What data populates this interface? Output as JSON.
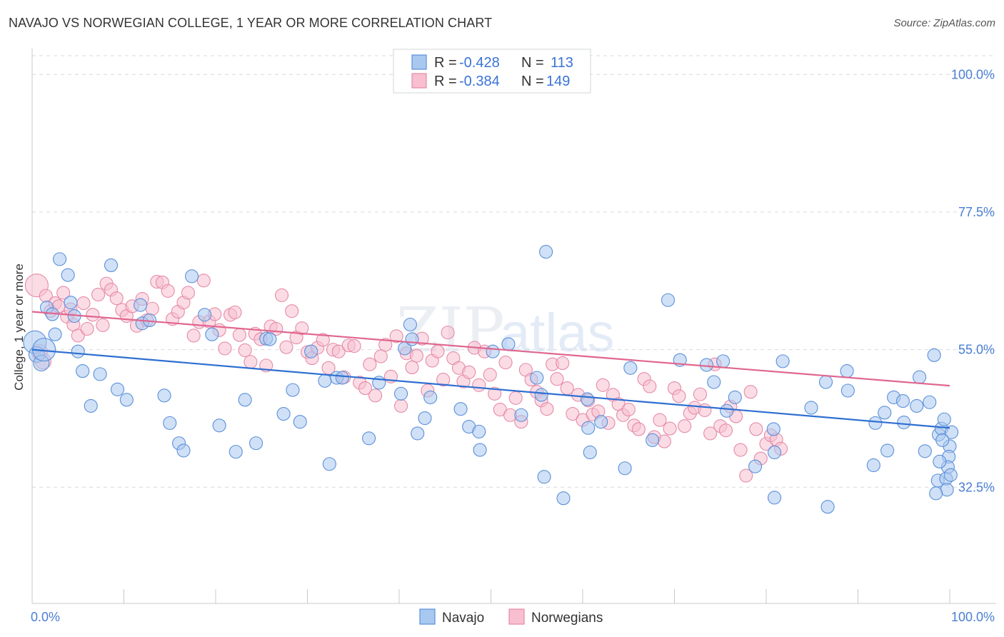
{
  "title": "NAVAJO VS NORWEGIAN COLLEGE, 1 YEAR OR MORE CORRELATION CHART",
  "source": "Source: ZipAtlas.com",
  "watermark": {
    "zip": "ZIP",
    "atlas": "atlas"
  },
  "legend_top": {
    "rows": [
      {
        "r_label": "R = ",
        "r_value": "-0.428",
        "n_label": "N = ",
        "n_value": "113"
      },
      {
        "r_label": "R = ",
        "r_value": "-0.384",
        "n_label": "N = ",
        "n_value": "149"
      }
    ]
  },
  "legend_bottom": {
    "items": [
      "Navajo",
      "Norwegians"
    ]
  },
  "colors": {
    "navajo_fill": "#a9c8f0",
    "navajo_stroke": "#5b8fd8",
    "navajo_line": "#2f6fd1",
    "norwegian_fill": "#f7bfd0",
    "norwegian_stroke": "#e58aa8",
    "norwegian_line": "#e0668f",
    "tick_label": "#4a7fd4",
    "grid": "#d5d9df"
  },
  "chart_data": {
    "type": "scatter",
    "title": "NAVAJO VS NORWEGIAN COLLEGE, 1 YEAR OR MORE CORRELATION CHART",
    "xlabel": "",
    "ylabel": "College, 1 year or more",
    "xlim": [
      0,
      100
    ],
    "ylim": [
      13.5,
      104
    ],
    "x_tick_labels": [
      {
        "value": 0,
        "label": "0.0%"
      },
      {
        "value": 100,
        "label": "100.0%"
      }
    ],
    "y_tick_labels": [
      {
        "value": 100,
        "label": "100.0%"
      },
      {
        "value": 77.5,
        "label": "77.5%"
      },
      {
        "value": 55,
        "label": "55.0%"
      },
      {
        "value": 32.5,
        "label": "32.5%"
      }
    ],
    "grid": true,
    "legend_position": "top-center",
    "series": [
      {
        "name": "Navajo",
        "r": -0.428,
        "n": 113,
        "trend": {
          "x": [
            0,
            100
          ],
          "y": [
            55.0,
            42.2
          ]
        },
        "points": [
          [
            0.3,
            56.2
          ],
          [
            0.5,
            54.2
          ],
          [
            1.0,
            52.8
          ],
          [
            1.3,
            55.0
          ],
          [
            1.6,
            61.9
          ],
          [
            2.2,
            60.8
          ],
          [
            2.5,
            57.5
          ],
          [
            3.0,
            69.8
          ],
          [
            3.9,
            67.2
          ],
          [
            4.2,
            62.7
          ],
          [
            4.6,
            60.5
          ],
          [
            5.0,
            54.7
          ],
          [
            5.5,
            51.5
          ],
          [
            6.4,
            45.8
          ],
          [
            7.4,
            51.0
          ],
          [
            8.6,
            68.8
          ],
          [
            9.3,
            48.5
          ],
          [
            10.3,
            46.8
          ],
          [
            11.8,
            62.3
          ],
          [
            12.0,
            59.3
          ],
          [
            12.8,
            59.8
          ],
          [
            14.4,
            47.5
          ],
          [
            15.0,
            43.0
          ],
          [
            16.0,
            39.7
          ],
          [
            16.5,
            38.5
          ],
          [
            17.4,
            67.0
          ],
          [
            18.8,
            60.7
          ],
          [
            19.6,
            57.5
          ],
          [
            20.4,
            42.6
          ],
          [
            22.2,
            38.3
          ],
          [
            23.2,
            46.8
          ],
          [
            24.4,
            39.7
          ],
          [
            25.5,
            56.8
          ],
          [
            25.9,
            56.7
          ],
          [
            27.4,
            44.5
          ],
          [
            28.4,
            48.4
          ],
          [
            29.2,
            43.2
          ],
          [
            30.4,
            54.7
          ],
          [
            31.9,
            49.9
          ],
          [
            32.4,
            36.3
          ],
          [
            33.2,
            50.4
          ],
          [
            33.8,
            50.4
          ],
          [
            36.7,
            40.5
          ],
          [
            37.8,
            49.6
          ],
          [
            40.2,
            47.8
          ],
          [
            40.6,
            55.2
          ],
          [
            41.2,
            59.1
          ],
          [
            41.4,
            56.7
          ],
          [
            42.0,
            41.3
          ],
          [
            42.8,
            43.8
          ],
          [
            43.4,
            47.2
          ],
          [
            46.7,
            45.3
          ],
          [
            47.6,
            42.4
          ],
          [
            48.7,
            41.6
          ],
          [
            48.8,
            38.6
          ],
          [
            50.2,
            54.7
          ],
          [
            51.9,
            55.9
          ],
          [
            53.3,
            44.3
          ],
          [
            55.0,
            50.4
          ],
          [
            55.5,
            47.6
          ],
          [
            55.8,
            34.2
          ],
          [
            56.0,
            71.0
          ],
          [
            57.9,
            30.7
          ],
          [
            60.5,
            46.9
          ],
          [
            60.6,
            42.2
          ],
          [
            60.8,
            38.2
          ],
          [
            62.0,
            43.2
          ],
          [
            64.6,
            35.6
          ],
          [
            65.2,
            52.0
          ],
          [
            67.6,
            40.2
          ],
          [
            69.3,
            63.1
          ],
          [
            70.6,
            53.3
          ],
          [
            73.5,
            52.5
          ],
          [
            74.3,
            49.7
          ],
          [
            75.3,
            53.1
          ],
          [
            75.7,
            45.0
          ],
          [
            76.6,
            47.2
          ],
          [
            78.8,
            35.9
          ],
          [
            80.8,
            42.0
          ],
          [
            80.9,
            38.2
          ],
          [
            80.9,
            30.8
          ],
          [
            81.8,
            53.1
          ],
          [
            84.9,
            45.5
          ],
          [
            86.5,
            49.7
          ],
          [
            86.7,
            29.3
          ],
          [
            88.8,
            51.5
          ],
          [
            88.9,
            48.3
          ],
          [
            91.7,
            36.1
          ],
          [
            91.9,
            43.0
          ],
          [
            92.9,
            44.7
          ],
          [
            93.2,
            38.5
          ],
          [
            93.9,
            47.2
          ],
          [
            94.9,
            46.6
          ],
          [
            95.0,
            43.1
          ],
          [
            96.4,
            45.8
          ],
          [
            96.7,
            50.5
          ],
          [
            97.3,
            38.4
          ],
          [
            97.8,
            46.4
          ],
          [
            98.3,
            54.1
          ],
          [
            98.7,
            33.6
          ],
          [
            98.8,
            41.1
          ],
          [
            99.1,
            42.1
          ],
          [
            99.6,
            33.9
          ],
          [
            100.0,
            39.2
          ],
          [
            99.9,
            37.5
          ],
          [
            99.8,
            35.8
          ],
          [
            100.1,
            34.5
          ],
          [
            99.7,
            32.1
          ],
          [
            100.2,
            41.5
          ],
          [
            99.4,
            43.6
          ],
          [
            98.9,
            36.7
          ],
          [
            98.5,
            31.5
          ],
          [
            99.2,
            40.2
          ]
        ]
      },
      {
        "name": "Norwegians",
        "r": -0.384,
        "n": 149,
        "trend": {
          "x": [
            0,
            100
          ],
          "y": [
            61.2,
            49.1
          ]
        },
        "points": [
          [
            0.5,
            65.5
          ],
          [
            0.8,
            54.6
          ],
          [
            1.2,
            53.1
          ],
          [
            1.5,
            63.8
          ],
          [
            2.0,
            61.3
          ],
          [
            2.5,
            62.6
          ],
          [
            2.9,
            62.1
          ],
          [
            3.4,
            64.3
          ],
          [
            3.8,
            60.4
          ],
          [
            4.2,
            61.6
          ],
          [
            4.5,
            59.1
          ],
          [
            5.0,
            57.3
          ],
          [
            5.6,
            62.6
          ],
          [
            6.0,
            58.4
          ],
          [
            6.6,
            60.7
          ],
          [
            7.2,
            64.0
          ],
          [
            7.7,
            59.0
          ],
          [
            8.1,
            65.8
          ],
          [
            8.6,
            64.8
          ],
          [
            9.2,
            63.4
          ],
          [
            9.8,
            61.5
          ],
          [
            10.3,
            60.5
          ],
          [
            10.9,
            62.1
          ],
          [
            11.4,
            58.9
          ],
          [
            12.0,
            63.3
          ],
          [
            12.5,
            59.8
          ],
          [
            13.1,
            61.7
          ],
          [
            13.6,
            66.1
          ],
          [
            14.2,
            66.0
          ],
          [
            14.8,
            64.6
          ],
          [
            15.3,
            60.0
          ],
          [
            15.9,
            61.2
          ],
          [
            16.5,
            62.7
          ],
          [
            17.0,
            64.3
          ],
          [
            17.6,
            57.3
          ],
          [
            18.2,
            59.5
          ],
          [
            18.7,
            66.3
          ],
          [
            19.3,
            59.6
          ],
          [
            19.9,
            60.8
          ],
          [
            20.4,
            58.2
          ],
          [
            21.0,
            55.2
          ],
          [
            21.6,
            60.7
          ],
          [
            22.1,
            61.1
          ],
          [
            22.6,
            57.4
          ],
          [
            23.2,
            54.9
          ],
          [
            23.8,
            53.0
          ],
          [
            24.3,
            57.6
          ],
          [
            24.9,
            56.7
          ],
          [
            25.5,
            52.4
          ],
          [
            26.0,
            58.8
          ],
          [
            26.6,
            58.4
          ],
          [
            27.2,
            63.9
          ],
          [
            27.7,
            55.4
          ],
          [
            28.3,
            61.3
          ],
          [
            28.8,
            57.0
          ],
          [
            29.4,
            58.5
          ],
          [
            30.0,
            54.6
          ],
          [
            30.5,
            53.6
          ],
          [
            31.1,
            55.3
          ],
          [
            31.7,
            56.6
          ],
          [
            32.3,
            52.0
          ],
          [
            32.8,
            55.0
          ],
          [
            33.4,
            54.7
          ],
          [
            34.0,
            50.5
          ],
          [
            34.5,
            55.7
          ],
          [
            35.1,
            55.6
          ],
          [
            35.7,
            49.6
          ],
          [
            36.3,
            48.7
          ],
          [
            36.8,
            52.6
          ],
          [
            37.4,
            47.5
          ],
          [
            38.0,
            53.9
          ],
          [
            38.5,
            55.8
          ],
          [
            39.1,
            50.6
          ],
          [
            39.7,
            57.2
          ],
          [
            40.2,
            45.8
          ],
          [
            40.8,
            54.4
          ],
          [
            41.4,
            52.1
          ],
          [
            41.9,
            54.0
          ],
          [
            42.5,
            56.8
          ],
          [
            43.1,
            48.3
          ],
          [
            43.6,
            53.2
          ],
          [
            44.2,
            54.7
          ],
          [
            44.8,
            50.1
          ],
          [
            45.3,
            57.8
          ],
          [
            45.9,
            53.6
          ],
          [
            46.5,
            52.0
          ],
          [
            47.0,
            49.8
          ],
          [
            47.6,
            51.3
          ],
          [
            48.2,
            55.3
          ],
          [
            48.7,
            49.2
          ],
          [
            49.3,
            54.7
          ],
          [
            49.9,
            50.9
          ],
          [
            50.4,
            47.8
          ],
          [
            51.0,
            45.2
          ],
          [
            51.6,
            52.9
          ],
          [
            52.1,
            44.3
          ],
          [
            52.7,
            47.1
          ],
          [
            53.3,
            43.2
          ],
          [
            53.8,
            51.7
          ],
          [
            54.4,
            50.1
          ],
          [
            55.0,
            48.1
          ],
          [
            55.5,
            46.7
          ],
          [
            56.1,
            45.3
          ],
          [
            56.7,
            52.6
          ],
          [
            57.2,
            50.2
          ],
          [
            57.8,
            52.8
          ],
          [
            58.3,
            48.7
          ],
          [
            58.9,
            44.5
          ],
          [
            59.5,
            47.6
          ],
          [
            60.0,
            43.5
          ],
          [
            60.6,
            46.7
          ],
          [
            61.1,
            44.4
          ],
          [
            61.7,
            44.9
          ],
          [
            62.2,
            49.2
          ],
          [
            62.8,
            43.0
          ],
          [
            63.3,
            47.6
          ],
          [
            63.9,
            46.1
          ],
          [
            64.4,
            44.3
          ],
          [
            65.0,
            45.2
          ],
          [
            65.6,
            42.6
          ],
          [
            66.1,
            42.0
          ],
          [
            66.7,
            50.2
          ],
          [
            67.3,
            49.0
          ],
          [
            67.8,
            40.7
          ],
          [
            68.4,
            43.5
          ],
          [
            68.9,
            40.0
          ],
          [
            69.5,
            42.1
          ],
          [
            70.0,
            48.7
          ],
          [
            70.5,
            47.4
          ],
          [
            71.1,
            42.5
          ],
          [
            71.7,
            44.6
          ],
          [
            72.2,
            45.5
          ],
          [
            72.8,
            47.7
          ],
          [
            73.3,
            45.1
          ],
          [
            73.9,
            41.3
          ],
          [
            74.4,
            52.6
          ],
          [
            75.0,
            42.5
          ],
          [
            75.6,
            41.8
          ],
          [
            76.1,
            45.7
          ],
          [
            76.7,
            44.1
          ],
          [
            77.2,
            38.6
          ],
          [
            77.8,
            34.4
          ],
          [
            78.3,
            48.1
          ],
          [
            78.9,
            42.0
          ],
          [
            79.4,
            37.2
          ],
          [
            80.0,
            39.6
          ],
          [
            80.5,
            41.0
          ],
          [
            81.1,
            40.3
          ],
          [
            81.6,
            38.8
          ]
        ]
      }
    ]
  }
}
